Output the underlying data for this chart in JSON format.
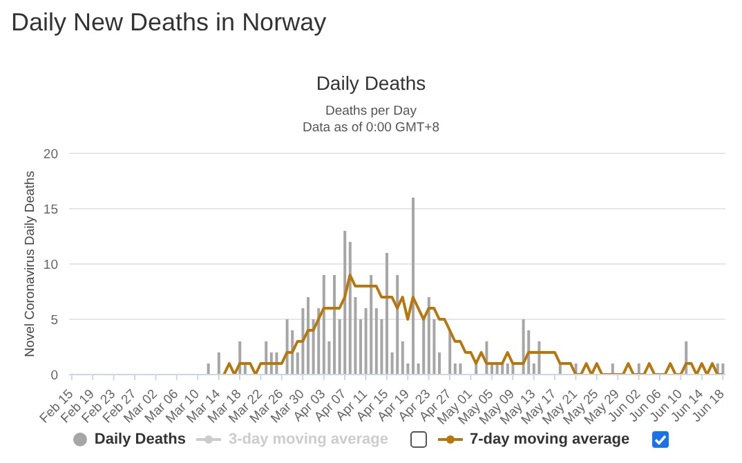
{
  "chart_data": {
    "type": "bar",
    "title": "Daily New Deaths in Norway",
    "subtitle": "Daily Deaths",
    "annotations": [
      "Deaths per Day",
      "Data as of 0:00 GMT+8"
    ],
    "ylabel": "Novel Coronavirus Daily Deaths",
    "categories": [
      "Feb 15",
      null,
      null,
      null,
      "Feb 19",
      null,
      null,
      null,
      "Feb 23",
      null,
      null,
      null,
      "Feb 27",
      null,
      null,
      null,
      "Mar 02",
      null,
      null,
      null,
      "Mar 06",
      null,
      null,
      null,
      "Mar 10",
      null,
      null,
      null,
      "Mar 14",
      null,
      null,
      null,
      "Mar 18",
      null,
      null,
      null,
      "Mar 22",
      null,
      null,
      null,
      "Mar 26",
      null,
      null,
      null,
      "Mar 30",
      null,
      null,
      null,
      "Apr 03",
      null,
      null,
      null,
      "Apr 07",
      null,
      null,
      null,
      "Apr 11",
      null,
      null,
      null,
      "Apr 15",
      null,
      null,
      null,
      "Apr 19",
      null,
      null,
      null,
      "Apr 23",
      null,
      null,
      null,
      "Apr 27",
      null,
      null,
      null,
      "May 01",
      null,
      null,
      null,
      "May 05",
      null,
      null,
      null,
      "May 09",
      null,
      null,
      null,
      "May 13",
      null,
      null,
      null,
      "May 17",
      null,
      null,
      null,
      "May 21",
      null,
      null,
      null,
      "May 25",
      null,
      null,
      null,
      "May 29",
      null,
      null,
      null,
      "Jun 02",
      null,
      null,
      null,
      "Jun 06",
      null,
      null,
      null,
      "Jun 10",
      null,
      null,
      null,
      "Jun 14",
      null,
      null,
      null,
      "Jun 18"
    ],
    "series": [
      {
        "name": "Daily Deaths",
        "type": "bar",
        "color": "#a6a6a6",
        "values": [
          0,
          0,
          0,
          0,
          0,
          0,
          0,
          0,
          0,
          0,
          0,
          0,
          0,
          0,
          0,
          0,
          0,
          0,
          0,
          0,
          0,
          0,
          0,
          0,
          0,
          0,
          1,
          0,
          2,
          0,
          0,
          0,
          3,
          1,
          0,
          0,
          0,
          3,
          2,
          2,
          0,
          5,
          4,
          2,
          6,
          7,
          5,
          6,
          9,
          3,
          9,
          5,
          13,
          12,
          7,
          5,
          6,
          9,
          6,
          5,
          11,
          2,
          9,
          3,
          1,
          16,
          1,
          5,
          7,
          5,
          2,
          0,
          4,
          1,
          1,
          0,
          0,
          1,
          0,
          3,
          1,
          1,
          1,
          1,
          1,
          0,
          5,
          4,
          1,
          3,
          0,
          0,
          0,
          1,
          0,
          0,
          1,
          0,
          0,
          0,
          0,
          0,
          0,
          1,
          0,
          0,
          0,
          0,
          1,
          0,
          0,
          0,
          0,
          0,
          0,
          0,
          0,
          3,
          0,
          0,
          0,
          0,
          0,
          1,
          1
        ]
      },
      {
        "name": "3-day moving average",
        "type": "line",
        "color": "#cccccc",
        "values": [
          null,
          null,
          null,
          null,
          null,
          null,
          null,
          null,
          null,
          null,
          null,
          null,
          null,
          null,
          null,
          null,
          null,
          null,
          null,
          null,
          null,
          null,
          null,
          null,
          null,
          null,
          null,
          null,
          null,
          null,
          null,
          null,
          null,
          null,
          null,
          null,
          null,
          null,
          null,
          null,
          null,
          null,
          null,
          null,
          null,
          null,
          null,
          null,
          null,
          null,
          null,
          null,
          null,
          null,
          null,
          null,
          null,
          null,
          null,
          null,
          null,
          null,
          null,
          null,
          null,
          null,
          null,
          null,
          null,
          null,
          null,
          null,
          null,
          null,
          null,
          null,
          null,
          null,
          null,
          null,
          null,
          null,
          null,
          null,
          null,
          null,
          null,
          null,
          null,
          null,
          null,
          null,
          null,
          null,
          null,
          null,
          null,
          null,
          null,
          null,
          null,
          null,
          null,
          null,
          null,
          null,
          null,
          null,
          null,
          null,
          null,
          null,
          null,
          null,
          null,
          null,
          null,
          null,
          null,
          null,
          null,
          null,
          null,
          null,
          null
        ]
      },
      {
        "name": "7-day moving average",
        "type": "line",
        "color": "#b8770b",
        "values": [
          null,
          null,
          null,
          null,
          null,
          null,
          null,
          null,
          null,
          null,
          null,
          null,
          null,
          null,
          null,
          null,
          null,
          null,
          null,
          null,
          null,
          null,
          null,
          null,
          null,
          null,
          null,
          null,
          null,
          0,
          1,
          0,
          1,
          1,
          1,
          0,
          1,
          1,
          1,
          1,
          1,
          2,
          2,
          3,
          3,
          4,
          4,
          5,
          6,
          6,
          6,
          6,
          7,
          9,
          8,
          8,
          8,
          8,
          8,
          7,
          7,
          7,
          6,
          7,
          5,
          7,
          6,
          5,
          6,
          6,
          5,
          5,
          4,
          3,
          3,
          2,
          2,
          1,
          2,
          1,
          1,
          1,
          1,
          2,
          1,
          1,
          1,
          2,
          2,
          2,
          2,
          2,
          2,
          1,
          1,
          1,
          0,
          0,
          1,
          0,
          1,
          0,
          0,
          0,
          0,
          0,
          1,
          0,
          0,
          0,
          1,
          0,
          0,
          0,
          1,
          0,
          0,
          1,
          1,
          0,
          1,
          0,
          1,
          0,
          0
        ]
      }
    ],
    "ylim": [
      0,
      20
    ],
    "yticks": [
      0,
      5,
      10,
      15,
      20
    ],
    "grid": "y",
    "legend": "bottom"
  }
}
